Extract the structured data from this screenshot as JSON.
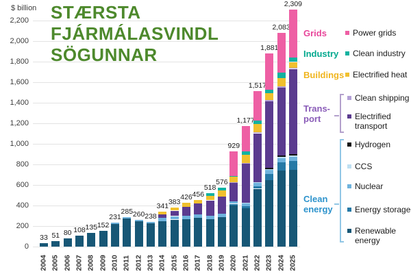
{
  "title_overlay": {
    "lines": [
      "STÆRSTA",
      "FJÁRMÁLASVINDL",
      "SÖGUNNAR"
    ],
    "color": "#4d892c"
  },
  "chart_data": {
    "type": "bar",
    "stacked": true,
    "title": "",
    "ylabel": "$ billion",
    "xlabel": "",
    "ylim": [
      0,
      2309
    ],
    "ytick_step": 200,
    "yticks": [
      "0",
      "200",
      "400",
      "600",
      "800",
      "1,000",
      "1,200",
      "1,400",
      "1,600",
      "1,800",
      "2,000",
      "2,200"
    ],
    "grid": true,
    "legend_position": "right",
    "categories": [
      "2004",
      "2005",
      "2006",
      "2007",
      "2008",
      "2009",
      "2010",
      "2011",
      "2012",
      "2013",
      "2014",
      "2015",
      "2016",
      "2017",
      "2018",
      "2019",
      "2020",
      "2021",
      "2022",
      "2023",
      "2024",
      "2025"
    ],
    "totals": [
      33,
      51,
      80,
      108,
      135,
      152,
      231,
      285,
      260,
      238,
      341,
      383,
      426,
      456,
      518,
      576,
      929,
      1177,
      1517,
      1881,
      2083,
      2309
    ],
    "total_labels": [
      "33",
      "51",
      "80",
      "108",
      "135",
      "152",
      "231",
      "285",
      "260",
      "238",
      "341",
      "383",
      "426",
      "456",
      "518",
      "576",
      "929",
      "1,177",
      "1,517",
      "1,881",
      "2,083",
      "2,309"
    ],
    "series": [
      {
        "name": "Renewable energy",
        "color": "#175776",
        "values": [
          33,
          51,
          80,
          108,
          135,
          152,
          222,
          272,
          248,
          226,
          248,
          264,
          266,
          283,
          270,
          289,
          402,
          373,
          564,
          650,
          740,
          750
        ]
      },
      {
        "name": "Energy storage",
        "color": "#2679a6",
        "values": [
          0,
          0,
          0,
          0,
          0,
          0,
          0,
          0,
          0,
          0,
          0,
          0,
          0,
          0,
          0,
          0,
          15,
          20,
          25,
          60,
          80,
          85
        ]
      },
      {
        "name": "Nuclear",
        "color": "#6fb3dd",
        "values": [
          0,
          0,
          0,
          0,
          0,
          0,
          9,
          13,
          12,
          12,
          33,
          33,
          33,
          33,
          30,
          33,
          25,
          30,
          35,
          35,
          40,
          40
        ]
      },
      {
        "name": "CCS",
        "color": "#bfe0f2",
        "values": [
          0,
          0,
          0,
          0,
          0,
          0,
          0,
          0,
          0,
          0,
          0,
          0,
          0,
          0,
          0,
          0,
          0,
          5,
          6,
          12,
          15,
          15
        ]
      },
      {
        "name": "Hydrogen",
        "color": "#111111",
        "values": [
          0,
          0,
          0,
          0,
          0,
          0,
          0,
          0,
          0,
          0,
          0,
          0,
          0,
          0,
          0,
          0,
          0,
          0,
          0,
          10,
          12,
          12
        ]
      },
      {
        "name": "Electrified transport",
        "color": "#5b3b8f",
        "values": [
          0,
          0,
          0,
          0,
          0,
          0,
          0,
          0,
          0,
          0,
          33,
          53,
          87,
          107,
          150,
          167,
          180,
          380,
          475,
          650,
          665,
          830
        ]
      },
      {
        "name": "Clean shipping",
        "color": "#b3a0d6",
        "values": [
          0,
          0,
          0,
          0,
          0,
          0,
          0,
          0,
          0,
          0,
          0,
          0,
          0,
          0,
          0,
          0,
          4,
          6,
          7,
          9,
          10,
          12
        ]
      },
      {
        "name": "Electrified heat",
        "color": "#f0c02e",
        "values": [
          0,
          0,
          0,
          0,
          0,
          0,
          0,
          0,
          0,
          0,
          27,
          33,
          40,
          33,
          45,
          60,
          52,
          80,
          80,
          70,
          80,
          55
        ]
      },
      {
        "name": "Clean industry",
        "color": "#12b2a0",
        "values": [
          0,
          0,
          0,
          0,
          0,
          0,
          0,
          0,
          0,
          0,
          0,
          0,
          0,
          0,
          23,
          27,
          11,
          33,
          35,
          35,
          51,
          45
        ]
      },
      {
        "name": "Power grids",
        "color": "#ee5fa4",
        "values": [
          0,
          0,
          0,
          0,
          0,
          0,
          0,
          0,
          0,
          0,
          0,
          0,
          0,
          0,
          0,
          0,
          240,
          250,
          290,
          350,
          390,
          465
        ]
      }
    ]
  },
  "legend": {
    "grids_group": "Grids",
    "grids_group_color": "#e8459a",
    "grids_item": "Power grids",
    "industry_group": "Industry",
    "industry_group_color": "#00a88e",
    "industry_item": "Clean industry",
    "buildings_group": "Buildings",
    "buildings_group_color": "#f0b51e",
    "buildings_item": "Electrified heat",
    "transport_group_line1": "Trans-",
    "transport_group_line2": "port",
    "transport_group_color": "#8a5cb8",
    "transport_bracket_color": "#b3a0cc",
    "transport_item1": "Clean shipping",
    "transport_item2_line1": "Electrified",
    "transport_item2_line2": "transport",
    "clean_group_line1": "Clean",
    "clean_group_line2": "energy",
    "clean_group_color": "#2d93cc",
    "clean_bracket_color": "#90c6e5",
    "clean_item1": "Hydrogen",
    "clean_item2": "CCS",
    "clean_item3": "Nuclear",
    "clean_item4": "Energy storage",
    "clean_item5_line1": "Renewable",
    "clean_item5_line2": "energy"
  },
  "swatch_colors": {
    "power_grids": "#ee5fa4",
    "clean_industry": "#12b2a0",
    "electrified_heat": "#f0c02e",
    "clean_shipping": "#b3a0d6",
    "electrified_transport": "#5b3b8f",
    "hydrogen": "#111111",
    "ccs": "#bfe0f2",
    "nuclear": "#6fb3dd",
    "energy_storage": "#2679a6",
    "renewable_energy": "#175776"
  }
}
